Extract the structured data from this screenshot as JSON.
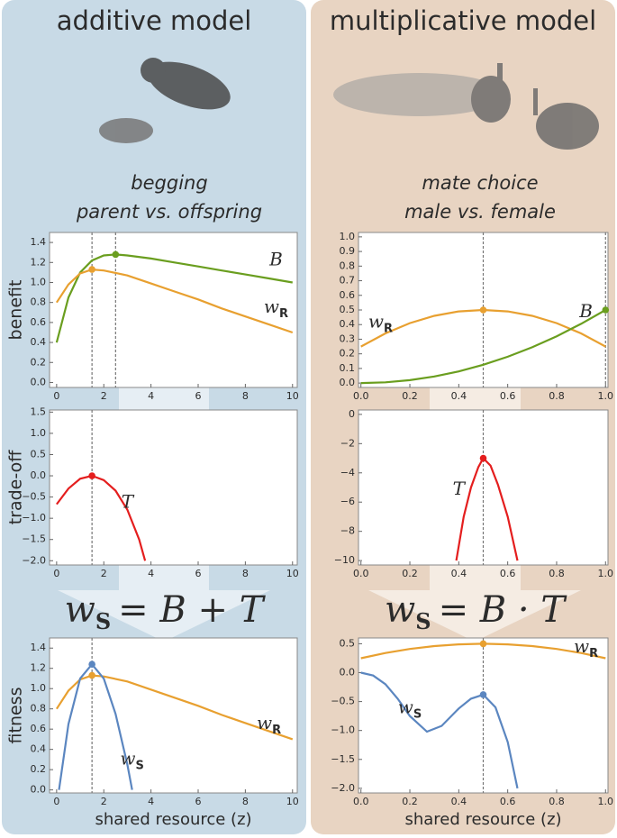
{
  "panels": [
    {
      "title": "additive model",
      "context": [
        "begging",
        "parent vs. offspring"
      ]
    },
    {
      "title": "multiplicative model",
      "context": [
        "mate choice",
        "male vs. female"
      ]
    }
  ],
  "equations": [
    {
      "w": "w",
      "subscript": "S",
      "rhs": "= B + T"
    },
    {
      "w": "w",
      "subscript": "S",
      "rhs": "= B · T"
    }
  ],
  "chart_data": [
    {
      "type": "line",
      "ylabel": "benefit",
      "xlim": [
        -0.3,
        10.2
      ],
      "ylim": [
        -0.05,
        1.5
      ],
      "xticks": [
        0,
        2,
        4,
        6,
        8,
        10
      ],
      "yticks": [
        {
          "value": 0,
          "label": "0.0"
        },
        {
          "value": 0.2,
          "label": "0.2"
        },
        {
          "value": 0.4,
          "label": "0.4"
        },
        {
          "value": 0.6,
          "label": "0.6"
        },
        {
          "value": 0.8,
          "label": "0.8"
        },
        {
          "value": 1.0,
          "label": "1.0"
        },
        {
          "value": 1.2,
          "label": "1.2"
        },
        {
          "value": 1.4,
          "label": "1.4"
        }
      ],
      "vlines": [
        1.5,
        2.5
      ],
      "series": [
        {
          "name": "B",
          "color": "#6a9e1f",
          "marker_x": 2.5,
          "x": [
            0,
            0.5,
            1,
            1.5,
            2,
            2.5,
            3,
            4,
            5,
            6,
            7,
            8,
            9,
            10
          ],
          "values": [
            0.4,
            0.85,
            1.1,
            1.22,
            1.27,
            1.28,
            1.27,
            1.24,
            1.2,
            1.16,
            1.12,
            1.08,
            1.04,
            1.0
          ]
        },
        {
          "name": "w",
          "subscript": "R",
          "color": "#e8a030",
          "marker_x": 1.5,
          "x": [
            0,
            0.5,
            1,
            1.5,
            2,
            3,
            4,
            5,
            6,
            7,
            8,
            9,
            10
          ],
          "values": [
            0.8,
            0.98,
            1.09,
            1.13,
            1.12,
            1.07,
            0.99,
            0.91,
            0.83,
            0.74,
            0.66,
            0.58,
            0.5
          ]
        }
      ]
    },
    {
      "type": "line",
      "ylabel": "trade-off",
      "xlim": [
        -0.3,
        10.2
      ],
      "ylim": [
        -2.1,
        1.55
      ],
      "xticks": [
        0,
        2,
        4,
        6,
        8,
        10
      ],
      "yticks": [
        {
          "value": 1.5,
          "label": "1.5"
        },
        {
          "value": 1.0,
          "label": "1.0"
        },
        {
          "value": 0.5,
          "label": "0.5"
        },
        {
          "value": 0,
          "label": "0.0"
        },
        {
          "value": -0.5,
          "label": "−0.5"
        },
        {
          "value": -1.0,
          "label": "−1.0"
        },
        {
          "value": -1.5,
          "label": "−1.5"
        },
        {
          "value": -2.0,
          "label": "−2.0"
        }
      ],
      "vlines": [
        1.5
      ],
      "series": [
        {
          "name": "T",
          "color": "#e41e1e",
          "marker_x": 1.5,
          "x": [
            0,
            0.5,
            1,
            1.5,
            2,
            2.5,
            3,
            3.5,
            3.75
          ],
          "values": [
            -0.67,
            -0.3,
            -0.07,
            0,
            -0.1,
            -0.35,
            -0.8,
            -1.5,
            -2.0
          ]
        }
      ]
    },
    {
      "type": "line",
      "ylabel": "fitness",
      "xlabel": "shared resource (z)",
      "xlim": [
        -0.3,
        10.2
      ],
      "ylim": [
        -0.03,
        1.5
      ],
      "xticks": [
        0,
        2,
        4,
        6,
        8,
        10
      ],
      "yticks": [
        {
          "value": 0,
          "label": "0.0"
        },
        {
          "value": 0.2,
          "label": "0.2"
        },
        {
          "value": 0.4,
          "label": "0.4"
        },
        {
          "value": 0.6,
          "label": "0.6"
        },
        {
          "value": 0.8,
          "label": "0.8"
        },
        {
          "value": 1.0,
          "label": "1.0"
        },
        {
          "value": 1.2,
          "label": "1.2"
        },
        {
          "value": 1.4,
          "label": "1.4"
        }
      ],
      "vlines": [
        1.5
      ],
      "series": [
        {
          "name": "w",
          "subscript": "R",
          "color": "#e8a030",
          "marker_x": 1.5,
          "x": [
            0,
            0.5,
            1,
            1.5,
            2,
            3,
            4,
            5,
            6,
            7,
            8,
            9,
            10
          ],
          "values": [
            0.8,
            0.98,
            1.09,
            1.13,
            1.12,
            1.07,
            0.99,
            0.91,
            0.83,
            0.74,
            0.66,
            0.58,
            0.5
          ]
        },
        {
          "name": "w",
          "subscript": "S",
          "color": "#5b86c0",
          "marker_x": 1.5,
          "x": [
            0.1,
            0.5,
            1,
            1.5,
            2,
            2.5,
            3,
            3.2
          ],
          "values": [
            0,
            0.65,
            1.1,
            1.24,
            1.1,
            0.75,
            0.25,
            0
          ]
        }
      ]
    },
    {
      "type": "line",
      "xlim": [
        -0.01,
        1.01
      ],
      "ylim": [
        -0.03,
        1.03
      ],
      "xticks": [
        {
          "value": 0,
          "label": "0.0"
        },
        {
          "value": 0.2,
          "label": "0.2"
        },
        {
          "value": 0.4,
          "label": "0.4"
        },
        {
          "value": 0.6,
          "label": "0.6"
        },
        {
          "value": 0.8,
          "label": "0.8"
        },
        {
          "value": 1.0,
          "label": "1.0"
        }
      ],
      "yticks": [
        {
          "value": 0,
          "label": "0.0"
        },
        {
          "value": 0.1,
          "label": "0.1"
        },
        {
          "value": 0.2,
          "label": "0.2"
        },
        {
          "value": 0.3,
          "label": "0.3"
        },
        {
          "value": 0.4,
          "label": "0.4"
        },
        {
          "value": 0.5,
          "label": "0.5"
        },
        {
          "value": 0.6,
          "label": "0.6"
        },
        {
          "value": 0.7,
          "label": "0.7"
        },
        {
          "value": 0.8,
          "label": "0.8"
        },
        {
          "value": 0.9,
          "label": "0.9"
        },
        {
          "value": 1.0,
          "label": "1.0"
        }
      ],
      "vlines": [
        0.5,
        1.0
      ],
      "series": [
        {
          "name": "w",
          "subscript": "R",
          "color": "#e8a030",
          "marker_x": 0.5,
          "x": [
            0,
            0.1,
            0.2,
            0.3,
            0.4,
            0.5,
            0.6,
            0.7,
            0.8,
            0.9,
            1.0
          ],
          "values": [
            0.25,
            0.34,
            0.41,
            0.46,
            0.49,
            0.5,
            0.49,
            0.46,
            0.41,
            0.34,
            0.25
          ]
        },
        {
          "name": "B",
          "color": "#6a9e1f",
          "marker_x": 1.0,
          "x": [
            0,
            0.1,
            0.2,
            0.3,
            0.4,
            0.5,
            0.6,
            0.7,
            0.8,
            0.9,
            1.0
          ],
          "values": [
            0,
            0.005,
            0.02,
            0.045,
            0.08,
            0.125,
            0.18,
            0.245,
            0.32,
            0.405,
            0.5
          ]
        }
      ]
    },
    {
      "type": "line",
      "xlim": [
        -0.01,
        1.01
      ],
      "ylim": [
        -10.3,
        0.3
      ],
      "xticks": [
        {
          "value": 0,
          "label": "0.0"
        },
        {
          "value": 0.2,
          "label": "0.2"
        },
        {
          "value": 0.4,
          "label": "0.4"
        },
        {
          "value": 0.6,
          "label": "0.6"
        },
        {
          "value": 0.8,
          "label": "0.8"
        },
        {
          "value": 1.0,
          "label": "1.0"
        }
      ],
      "yticks": [
        0,
        {
          "value": -2,
          "label": "−2"
        },
        {
          "value": -4,
          "label": "−4"
        },
        {
          "value": -6,
          "label": "−6"
        },
        {
          "value": -8,
          "label": "−8"
        },
        {
          "value": -10,
          "label": "−10"
        }
      ],
      "vlines": [
        0.5
      ],
      "series": [
        {
          "name": "T",
          "color": "#e41e1e",
          "marker_x": 0.5,
          "x": [
            0.39,
            0.42,
            0.45,
            0.48,
            0.5,
            0.53,
            0.56,
            0.6,
            0.64
          ],
          "values": [
            -10,
            -7,
            -5,
            -3.6,
            -3,
            -3.5,
            -4.8,
            -7,
            -10
          ]
        }
      ]
    },
    {
      "type": "line",
      "xlabel": "shared resource (z)",
      "xlim": [
        -0.01,
        1.01
      ],
      "ylim": [
        -2.08,
        0.6
      ],
      "xticks": [
        {
          "value": 0,
          "label": "0.0"
        },
        {
          "value": 0.2,
          "label": "0.2"
        },
        {
          "value": 0.4,
          "label": "0.4"
        },
        {
          "value": 0.6,
          "label": "0.6"
        },
        {
          "value": 0.8,
          "label": "0.8"
        },
        {
          "value": 1.0,
          "label": "1.0"
        }
      ],
      "yticks": [
        {
          "value": 0.5,
          "label": "0.5"
        },
        {
          "value": 0,
          "label": "0.0"
        },
        {
          "value": -0.5,
          "label": "−0.5"
        },
        {
          "value": -1.0,
          "label": "−1.0"
        },
        {
          "value": -1.5,
          "label": "−1.5"
        },
        {
          "value": -2.0,
          "label": "−2.0"
        }
      ],
      "vlines": [
        0.5
      ],
      "series": [
        {
          "name": "w",
          "subscript": "R",
          "color": "#e8a030",
          "marker_x": 0.5,
          "x": [
            0,
            0.1,
            0.2,
            0.3,
            0.4,
            0.5,
            0.6,
            0.7,
            0.8,
            0.9,
            1.0
          ],
          "values": [
            0.25,
            0.34,
            0.41,
            0.46,
            0.49,
            0.5,
            0.49,
            0.46,
            0.41,
            0.34,
            0.25
          ]
        },
        {
          "name": "w",
          "subscript": "S",
          "color": "#5b86c0",
          "marker_x": 0.5,
          "x": [
            0,
            0.05,
            0.1,
            0.15,
            0.2,
            0.27,
            0.33,
            0.4,
            0.45,
            0.5,
            0.55,
            0.6,
            0.64
          ],
          "values": [
            0,
            -0.05,
            -0.2,
            -0.45,
            -0.75,
            -1.02,
            -0.92,
            -0.62,
            -0.45,
            -0.38,
            -0.6,
            -1.2,
            -2.0
          ]
        }
      ]
    }
  ]
}
